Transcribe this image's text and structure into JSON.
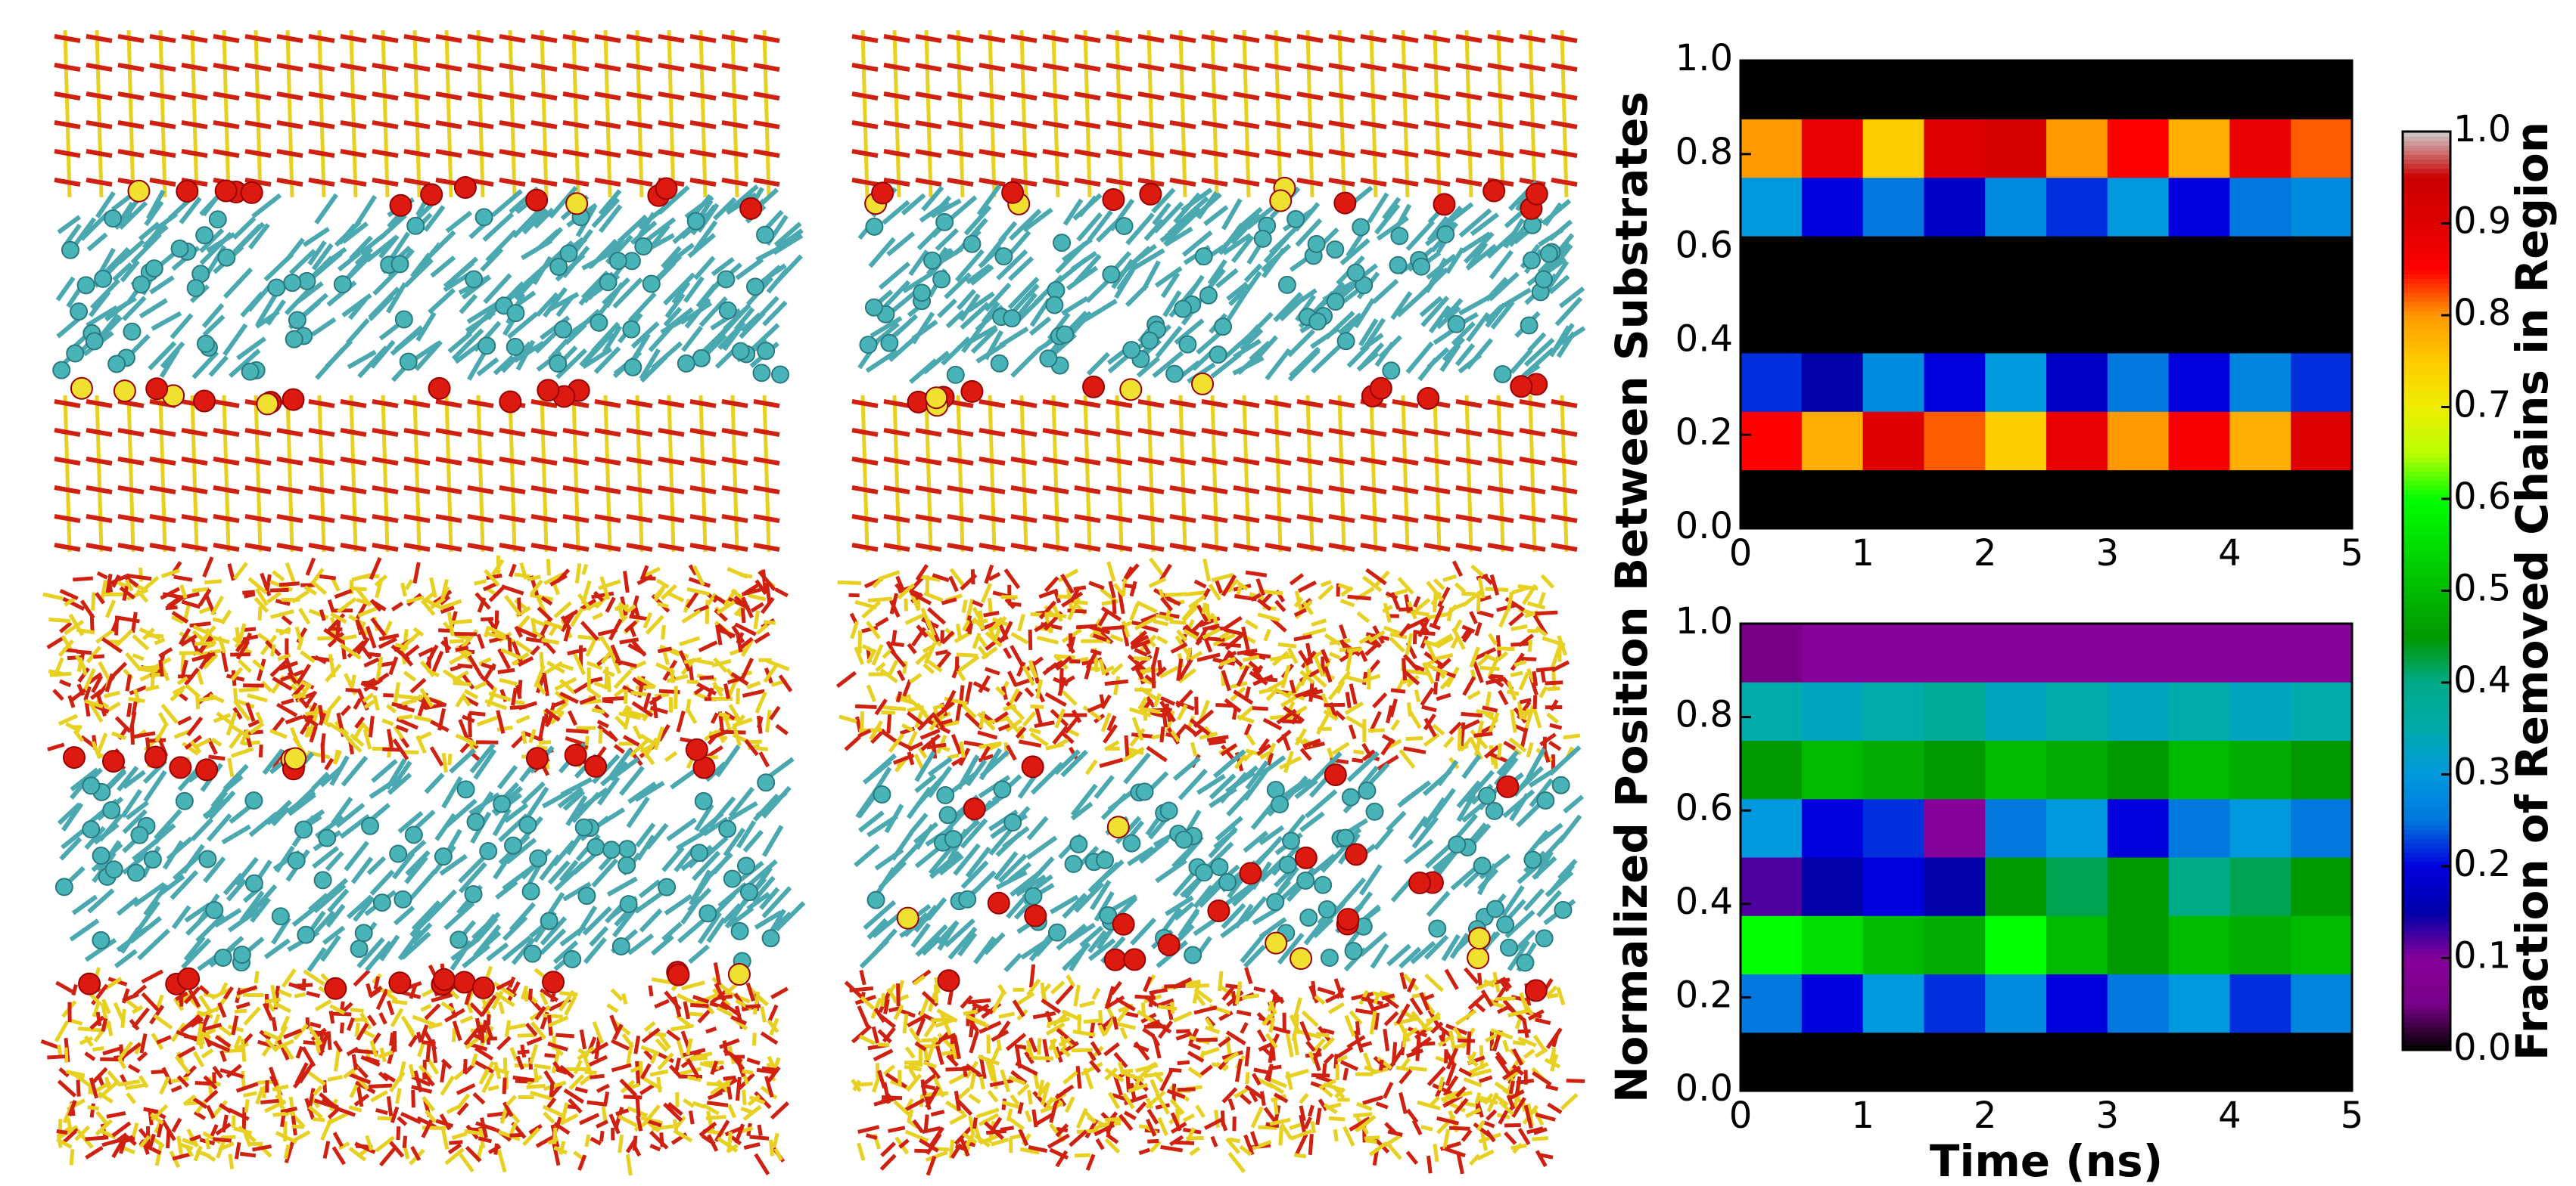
{
  "chart_data": [
    {
      "type": "heatmap",
      "ylabel": "Normalized Position Between Substrates",
      "xlim": [
        0,
        5
      ],
      "xticks": [
        0,
        1,
        2,
        3,
        4,
        5
      ],
      "ylim": [
        0,
        1
      ],
      "yticks": [
        {
          "value": 0,
          "label": "0.0"
        },
        {
          "value": 0.2,
          "label": "0.2"
        },
        {
          "value": 0.4,
          "label": "0.4"
        },
        {
          "value": 0.6,
          "label": "0.6"
        },
        {
          "value": 0.8,
          "label": "0.8"
        },
        {
          "value": 1,
          "label": "1.0"
        }
      ],
      "z": [
        [
          0,
          0,
          0,
          0,
          0,
          0,
          0,
          0,
          0,
          0
        ],
        [
          0.85,
          0.78,
          0.9,
          0.82,
          0.75,
          0.88,
          0.8,
          0.86,
          0.78,
          0.9
        ],
        [
          0.22,
          0.15,
          0.28,
          0.2,
          0.3,
          0.18,
          0.25,
          0.2,
          0.27,
          0.22
        ],
        [
          0,
          0,
          0,
          0,
          0,
          0,
          0,
          0,
          0,
          0
        ],
        [
          0,
          0,
          0,
          0,
          0,
          0,
          0,
          0,
          0,
          0
        ],
        [
          0.3,
          0.2,
          0.25,
          0.18,
          0.28,
          0.22,
          0.3,
          0.2,
          0.25,
          0.28
        ],
        [
          0.8,
          0.88,
          0.75,
          0.9,
          0.92,
          0.8,
          0.85,
          0.78,
          0.88,
          0.82
        ],
        [
          0,
          0,
          0,
          0,
          0,
          0,
          0,
          0,
          0,
          0
        ]
      ]
    },
    {
      "type": "heatmap",
      "xlabel": "Time (ns)",
      "xlim": [
        0,
        5
      ],
      "xticks": [
        0,
        1,
        2,
        3,
        4,
        5
      ],
      "ylim": [
        0,
        1
      ],
      "yticks": [
        {
          "value": 0,
          "label": "0.0"
        },
        {
          "value": 0.2,
          "label": "0.2"
        },
        {
          "value": 0.4,
          "label": "0.4"
        },
        {
          "value": 0.6,
          "label": "0.6"
        },
        {
          "value": 0.8,
          "label": "0.8"
        },
        {
          "value": 1,
          "label": "1.0"
        }
      ],
      "z": [
        [
          0,
          0,
          0,
          0,
          0,
          0,
          0,
          0,
          0,
          0
        ],
        [
          0.25,
          0.2,
          0.3,
          0.22,
          0.28,
          0.2,
          0.25,
          0.3,
          0.22,
          0.27
        ],
        [
          0.6,
          0.55,
          0.5,
          0.48,
          0.6,
          0.5,
          0.45,
          0.5,
          0.48,
          0.5
        ],
        [
          0.12,
          0.15,
          0.2,
          0.15,
          0.45,
          0.42,
          0.45,
          0.4,
          0.42,
          0.45
        ],
        [
          0.3,
          0.2,
          0.22,
          0.1,
          0.25,
          0.3,
          0.2,
          0.25,
          0.3,
          0.25
        ],
        [
          0.45,
          0.5,
          0.48,
          0.45,
          0.5,
          0.48,
          0.45,
          0.5,
          0.48,
          0.45
        ],
        [
          0.35,
          0.33,
          0.35,
          0.38,
          0.33,
          0.35,
          0.33,
          0.35,
          0.33,
          0.35
        ],
        [
          0.05,
          0.1,
          0.1,
          0.1,
          0.1,
          0.1,
          0.1,
          0.1,
          0.1,
          0.1
        ]
      ]
    }
  ],
  "colorbar": {
    "label": "Fraction of Removed Chains in Region",
    "colormap": "nipy_spectral",
    "lim": [
      0,
      1
    ],
    "ticks": [
      {
        "value": 0,
        "label": "0.0"
      },
      {
        "value": 0.1,
        "label": "0.1"
      },
      {
        "value": 0.2,
        "label": "0.2"
      },
      {
        "value": 0.3,
        "label": "0.3"
      },
      {
        "value": 0.4,
        "label": "0.4"
      },
      {
        "value": 0.5,
        "label": "0.5"
      },
      {
        "value": 0.6,
        "label": "0.6"
      },
      {
        "value": 0.7,
        "label": "0.7"
      },
      {
        "value": 0.8,
        "label": "0.8"
      },
      {
        "value": 0.9,
        "label": "0.9"
      },
      {
        "value": 1,
        "label": "1.0"
      }
    ]
  }
}
